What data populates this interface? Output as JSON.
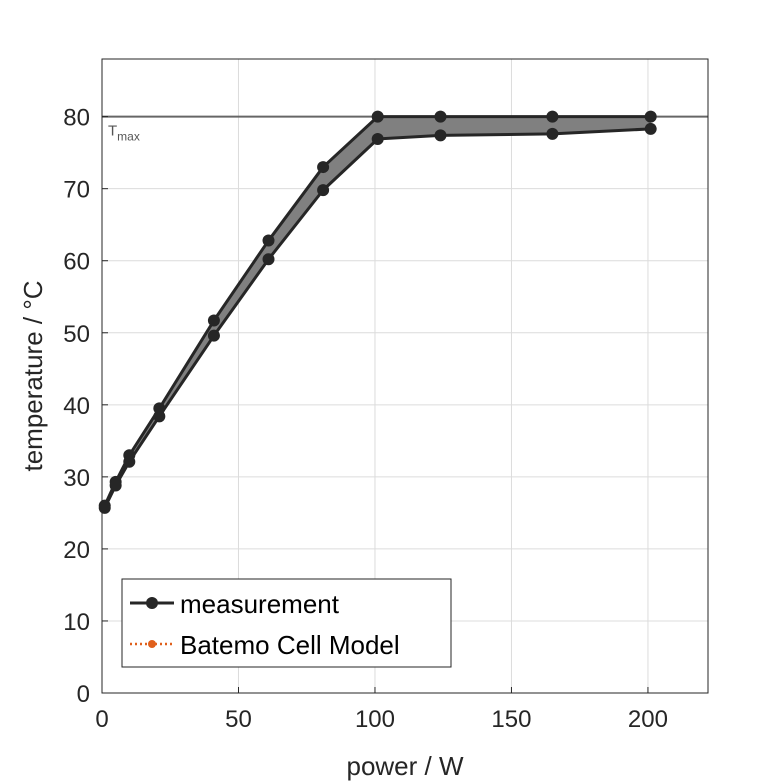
{
  "chart_data": {
    "type": "line",
    "xlabel": "power / W",
    "ylabel": "temperature / °C",
    "xlim": [
      0,
      222
    ],
    "ylim": [
      0,
      88
    ],
    "xticks": [
      0,
      50,
      100,
      150,
      200
    ],
    "yticks": [
      0,
      10,
      20,
      30,
      40,
      50,
      60,
      70,
      80
    ],
    "grid": true,
    "legend_position": "bottom-left",
    "threshold": {
      "value": 80,
      "label": "T",
      "label_sub": "max",
      "color": "#666666"
    },
    "band_color": "#808080",
    "series": [
      {
        "name": "measurement",
        "color": "#262626",
        "style": "solid",
        "marker": "circle",
        "upper": {
          "x": [
            1,
            5,
            10,
            21,
            41,
            61,
            81,
            101,
            124,
            165,
            201
          ],
          "y": [
            26.0,
            29.3,
            33.0,
            39.5,
            51.7,
            62.8,
            73.0,
            80.0,
            80.0,
            80.0,
            80.0
          ]
        },
        "lower": {
          "x": [
            1,
            5,
            10,
            21,
            41,
            61,
            81,
            101,
            124,
            165,
            201
          ],
          "y": [
            25.7,
            28.8,
            32.1,
            38.4,
            49.6,
            60.2,
            69.8,
            76.9,
            77.4,
            77.6,
            78.3
          ]
        }
      },
      {
        "name": "Batemo Cell Model",
        "color": "#e0601c",
        "style": "dotted",
        "marker": "circle",
        "x": [],
        "y": []
      }
    ]
  }
}
